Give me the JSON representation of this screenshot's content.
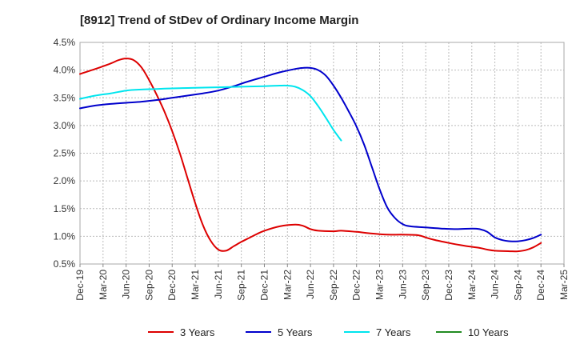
{
  "chart_data": {
    "type": "line",
    "title": "[8912]  Trend of StDev of Ordinary Income Margin",
    "xlabel": "",
    "ylabel": "",
    "x_ticks": [
      "Dec-19",
      "Mar-20",
      "Jun-20",
      "Sep-20",
      "Dec-20",
      "Mar-21",
      "Jun-21",
      "Sep-21",
      "Dec-21",
      "Mar-22",
      "Jun-22",
      "Sep-22",
      "Dec-22",
      "Mar-23",
      "Jun-23",
      "Sep-23",
      "Dec-23",
      "Mar-24",
      "Jun-24",
      "Sep-24",
      "Dec-24",
      "Mar-25"
    ],
    "y_ticks": [
      "0.5%",
      "1.0%",
      "1.5%",
      "2.0%",
      "2.5%",
      "3.0%",
      "3.5%",
      "4.0%",
      "4.5%"
    ],
    "ylim": [
      0.5,
      4.5
    ],
    "grid": true,
    "legend_position": "bottom",
    "series": [
      {
        "name": "3 Years",
        "color": "#dd0000",
        "points": [
          [
            "Dec-19",
            3.93
          ],
          [
            "Feb-20",
            4.02
          ],
          [
            "Apr-20",
            4.12
          ],
          [
            "May-20",
            4.18
          ],
          [
            "Jun-20",
            4.21
          ],
          [
            "Jul-20",
            4.18
          ],
          [
            "Aug-20",
            4.05
          ],
          [
            "Sep-20",
            3.82
          ],
          [
            "Oct-20",
            3.55
          ],
          [
            "Nov-20",
            3.25
          ],
          [
            "Dec-20",
            2.9
          ],
          [
            "Jan-21",
            2.5
          ],
          [
            "Feb-21",
            2.05
          ],
          [
            "Mar-21",
            1.6
          ],
          [
            "Apr-21",
            1.2
          ],
          [
            "May-21",
            0.92
          ],
          [
            "Jun-21",
            0.76
          ],
          [
            "Jul-21",
            0.74
          ],
          [
            "Aug-21",
            0.82
          ],
          [
            "Sep-21",
            0.9
          ],
          [
            "Oct-21",
            0.97
          ],
          [
            "Nov-21",
            1.04
          ],
          [
            "Dec-21",
            1.1
          ],
          [
            "Feb-22",
            1.18
          ],
          [
            "Apr-22",
            1.21
          ],
          [
            "May-22",
            1.19
          ],
          [
            "Jun-22",
            1.13
          ],
          [
            "Jul-22",
            1.1
          ],
          [
            "Sep-22",
            1.09
          ],
          [
            "Oct-22",
            1.1
          ],
          [
            "Dec-22",
            1.08
          ],
          [
            "Feb-23",
            1.05
          ],
          [
            "Apr-23",
            1.03
          ],
          [
            "Jun-23",
            1.03
          ],
          [
            "Aug-23",
            1.02
          ],
          [
            "Sep-23",
            0.98
          ],
          [
            "Oct-23",
            0.94
          ],
          [
            "Dec-23",
            0.88
          ],
          [
            "Feb-24",
            0.83
          ],
          [
            "Apr-24",
            0.79
          ],
          [
            "May-24",
            0.76
          ],
          [
            "Jun-24",
            0.74
          ],
          [
            "Aug-24",
            0.73
          ],
          [
            "Sep-24",
            0.73
          ],
          [
            "Oct-24",
            0.75
          ],
          [
            "Nov-24",
            0.8
          ],
          [
            "Dec-24",
            0.88
          ]
        ]
      },
      {
        "name": "5 Years",
        "color": "#0000cc",
        "points": [
          [
            "Dec-19",
            3.31
          ],
          [
            "Feb-20",
            3.36
          ],
          [
            "Apr-20",
            3.39
          ],
          [
            "Jun-20",
            3.41
          ],
          [
            "Aug-20",
            3.43
          ],
          [
            "Oct-20",
            3.46
          ],
          [
            "Dec-20",
            3.5
          ],
          [
            "Feb-21",
            3.54
          ],
          [
            "Apr-21",
            3.58
          ],
          [
            "Jun-21",
            3.63
          ],
          [
            "Aug-21",
            3.71
          ],
          [
            "Oct-21",
            3.8
          ],
          [
            "Dec-21",
            3.88
          ],
          [
            "Feb-22",
            3.96
          ],
          [
            "Apr-22",
            4.02
          ],
          [
            "May-22",
            4.04
          ],
          [
            "Jun-22",
            4.04
          ],
          [
            "Jul-22",
            4.0
          ],
          [
            "Aug-22",
            3.9
          ],
          [
            "Sep-22",
            3.72
          ],
          [
            "Oct-22",
            3.5
          ],
          [
            "Nov-22",
            3.25
          ],
          [
            "Dec-22",
            2.98
          ],
          [
            "Jan-23",
            2.65
          ],
          [
            "Feb-23",
            2.25
          ],
          [
            "Mar-23",
            1.85
          ],
          [
            "Apr-23",
            1.52
          ],
          [
            "May-23",
            1.33
          ],
          [
            "Jun-23",
            1.22
          ],
          [
            "Jul-23",
            1.18
          ],
          [
            "Sep-23",
            1.16
          ],
          [
            "Nov-23",
            1.14
          ],
          [
            "Jan-24",
            1.13
          ],
          [
            "Mar-24",
            1.14
          ],
          [
            "Apr-24",
            1.13
          ],
          [
            "May-24",
            1.08
          ],
          [
            "Jun-24",
            0.98
          ],
          [
            "Jul-24",
            0.93
          ],
          [
            "Aug-24",
            0.91
          ],
          [
            "Sep-24",
            0.91
          ],
          [
            "Oct-24",
            0.93
          ],
          [
            "Nov-24",
            0.97
          ],
          [
            "Dec-24",
            1.03
          ]
        ]
      },
      {
        "name": "7 Years",
        "color": "#00e5ee",
        "points": [
          [
            "Dec-19",
            3.48
          ],
          [
            "Feb-20",
            3.54
          ],
          [
            "Apr-20",
            3.58
          ],
          [
            "Jun-20",
            3.63
          ],
          [
            "Aug-20",
            3.65
          ],
          [
            "Oct-20",
            3.66
          ],
          [
            "Dec-20",
            3.67
          ],
          [
            "Mar-21",
            3.68
          ],
          [
            "Jun-21",
            3.69
          ],
          [
            "Sep-21",
            3.7
          ],
          [
            "Dec-21",
            3.71
          ],
          [
            "Feb-22",
            3.72
          ],
          [
            "Mar-22",
            3.72
          ],
          [
            "Apr-22",
            3.7
          ],
          [
            "May-22",
            3.64
          ],
          [
            "Jun-22",
            3.53
          ],
          [
            "Jul-22",
            3.35
          ],
          [
            "Aug-22",
            3.14
          ],
          [
            "Sep-22",
            2.92
          ],
          [
            "Oct-22",
            2.73
          ]
        ]
      },
      {
        "name": "10 Years",
        "color": "#228b22",
        "points": []
      }
    ]
  }
}
